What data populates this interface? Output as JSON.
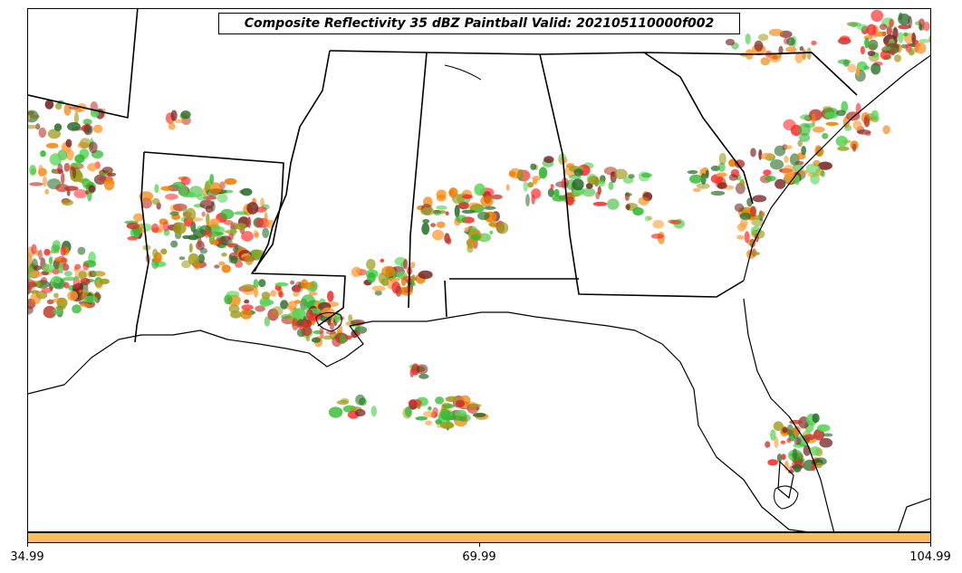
{
  "title": "Composite Reflectivity 35 dBZ Paintball Valid: 202105110000f002",
  "colorbar": {
    "color": "#fbbd5c",
    "ticks": [
      "34.99",
      "69.99",
      "104.99"
    ]
  },
  "palette": [
    "#ff2b2b",
    "#f07f00",
    "#9c9c1a",
    "#2fb82f",
    "#7a2424",
    "#2a6e2a",
    "#ff9a33",
    "#55d655",
    "#c0392b"
  ]
}
